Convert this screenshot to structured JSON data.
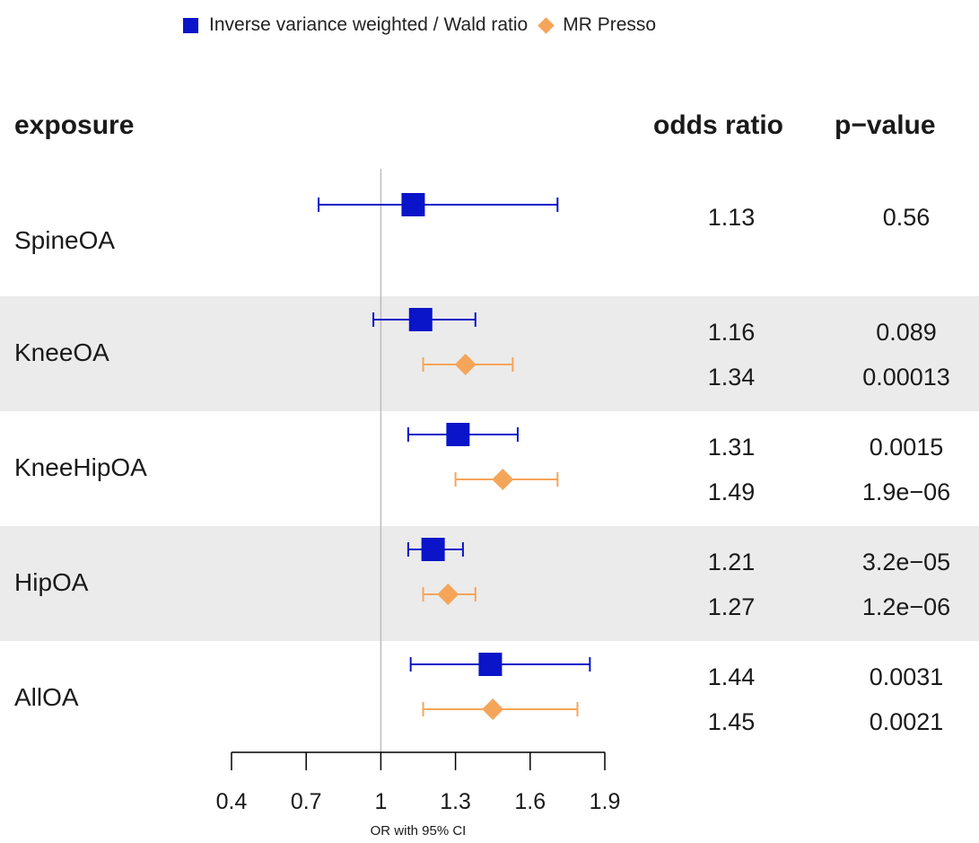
{
  "legend": {
    "ivw_label": "Inverse variance weighted / Wald ratio",
    "presso_label": "MR Presso"
  },
  "headers": {
    "exposure": "exposure",
    "odds_ratio": "odds ratio",
    "p_value": "p−value"
  },
  "colors": {
    "ivw": "#0a14c8",
    "presso": "#f5a55a",
    "band": "#ebebeb",
    "refline": "#bdbdbd"
  },
  "chart_data": {
    "type": "forest",
    "xlabel": "OR with 95% CI",
    "xlim": [
      0.4,
      1.9
    ],
    "xticks": [
      0.4,
      0.7,
      1,
      1.3,
      1.6,
      1.9
    ],
    "xtick_labels": [
      "0.4",
      "0.7",
      "1",
      "1.3",
      "1.6",
      "1.9"
    ],
    "reference_line": 1,
    "series": [
      {
        "name": "Inverse variance weighted / Wald ratio",
        "marker": "square"
      },
      {
        "name": "MR Presso",
        "marker": "diamond"
      }
    ],
    "rows": [
      {
        "exposure": "SpineOA",
        "shaded": false,
        "estimates": [
          {
            "series": "Inverse variance weighted / Wald ratio",
            "or": 1.13,
            "lo": 0.75,
            "hi": 1.71,
            "or_label": "1.13",
            "p_label": "0.56"
          }
        ]
      },
      {
        "exposure": "KneeOA",
        "shaded": true,
        "estimates": [
          {
            "series": "Inverse variance weighted / Wald ratio",
            "or": 1.16,
            "lo": 0.97,
            "hi": 1.38,
            "or_label": "1.16",
            "p_label": "0.089"
          },
          {
            "series": "MR Presso",
            "or": 1.34,
            "lo": 1.17,
            "hi": 1.53,
            "or_label": "1.34",
            "p_label": "0.00013"
          }
        ]
      },
      {
        "exposure": "KneeHipOA",
        "shaded": false,
        "estimates": [
          {
            "series": "Inverse variance weighted / Wald ratio",
            "or": 1.31,
            "lo": 1.11,
            "hi": 1.55,
            "or_label": "1.31",
            "p_label": "0.0015"
          },
          {
            "series": "MR Presso",
            "or": 1.49,
            "lo": 1.3,
            "hi": 1.71,
            "or_label": "1.49",
            "p_label": "1.9e−06"
          }
        ]
      },
      {
        "exposure": "HipOA",
        "shaded": true,
        "estimates": [
          {
            "series": "Inverse variance weighted / Wald ratio",
            "or": 1.21,
            "lo": 1.11,
            "hi": 1.33,
            "or_label": "1.21",
            "p_label": "3.2e−05"
          },
          {
            "series": "MR Presso",
            "or": 1.27,
            "lo": 1.17,
            "hi": 1.38,
            "or_label": "1.27",
            "p_label": "1.2e−06"
          }
        ]
      },
      {
        "exposure": "AllOA",
        "shaded": false,
        "estimates": [
          {
            "series": "Inverse variance weighted / Wald ratio",
            "or": 1.44,
            "lo": 1.12,
            "hi": 1.84,
            "or_label": "1.44",
            "p_label": "0.0031"
          },
          {
            "series": "MR Presso",
            "or": 1.45,
            "lo": 1.17,
            "hi": 1.79,
            "or_label": "1.45",
            "p_label": "0.0021"
          }
        ]
      }
    ]
  }
}
